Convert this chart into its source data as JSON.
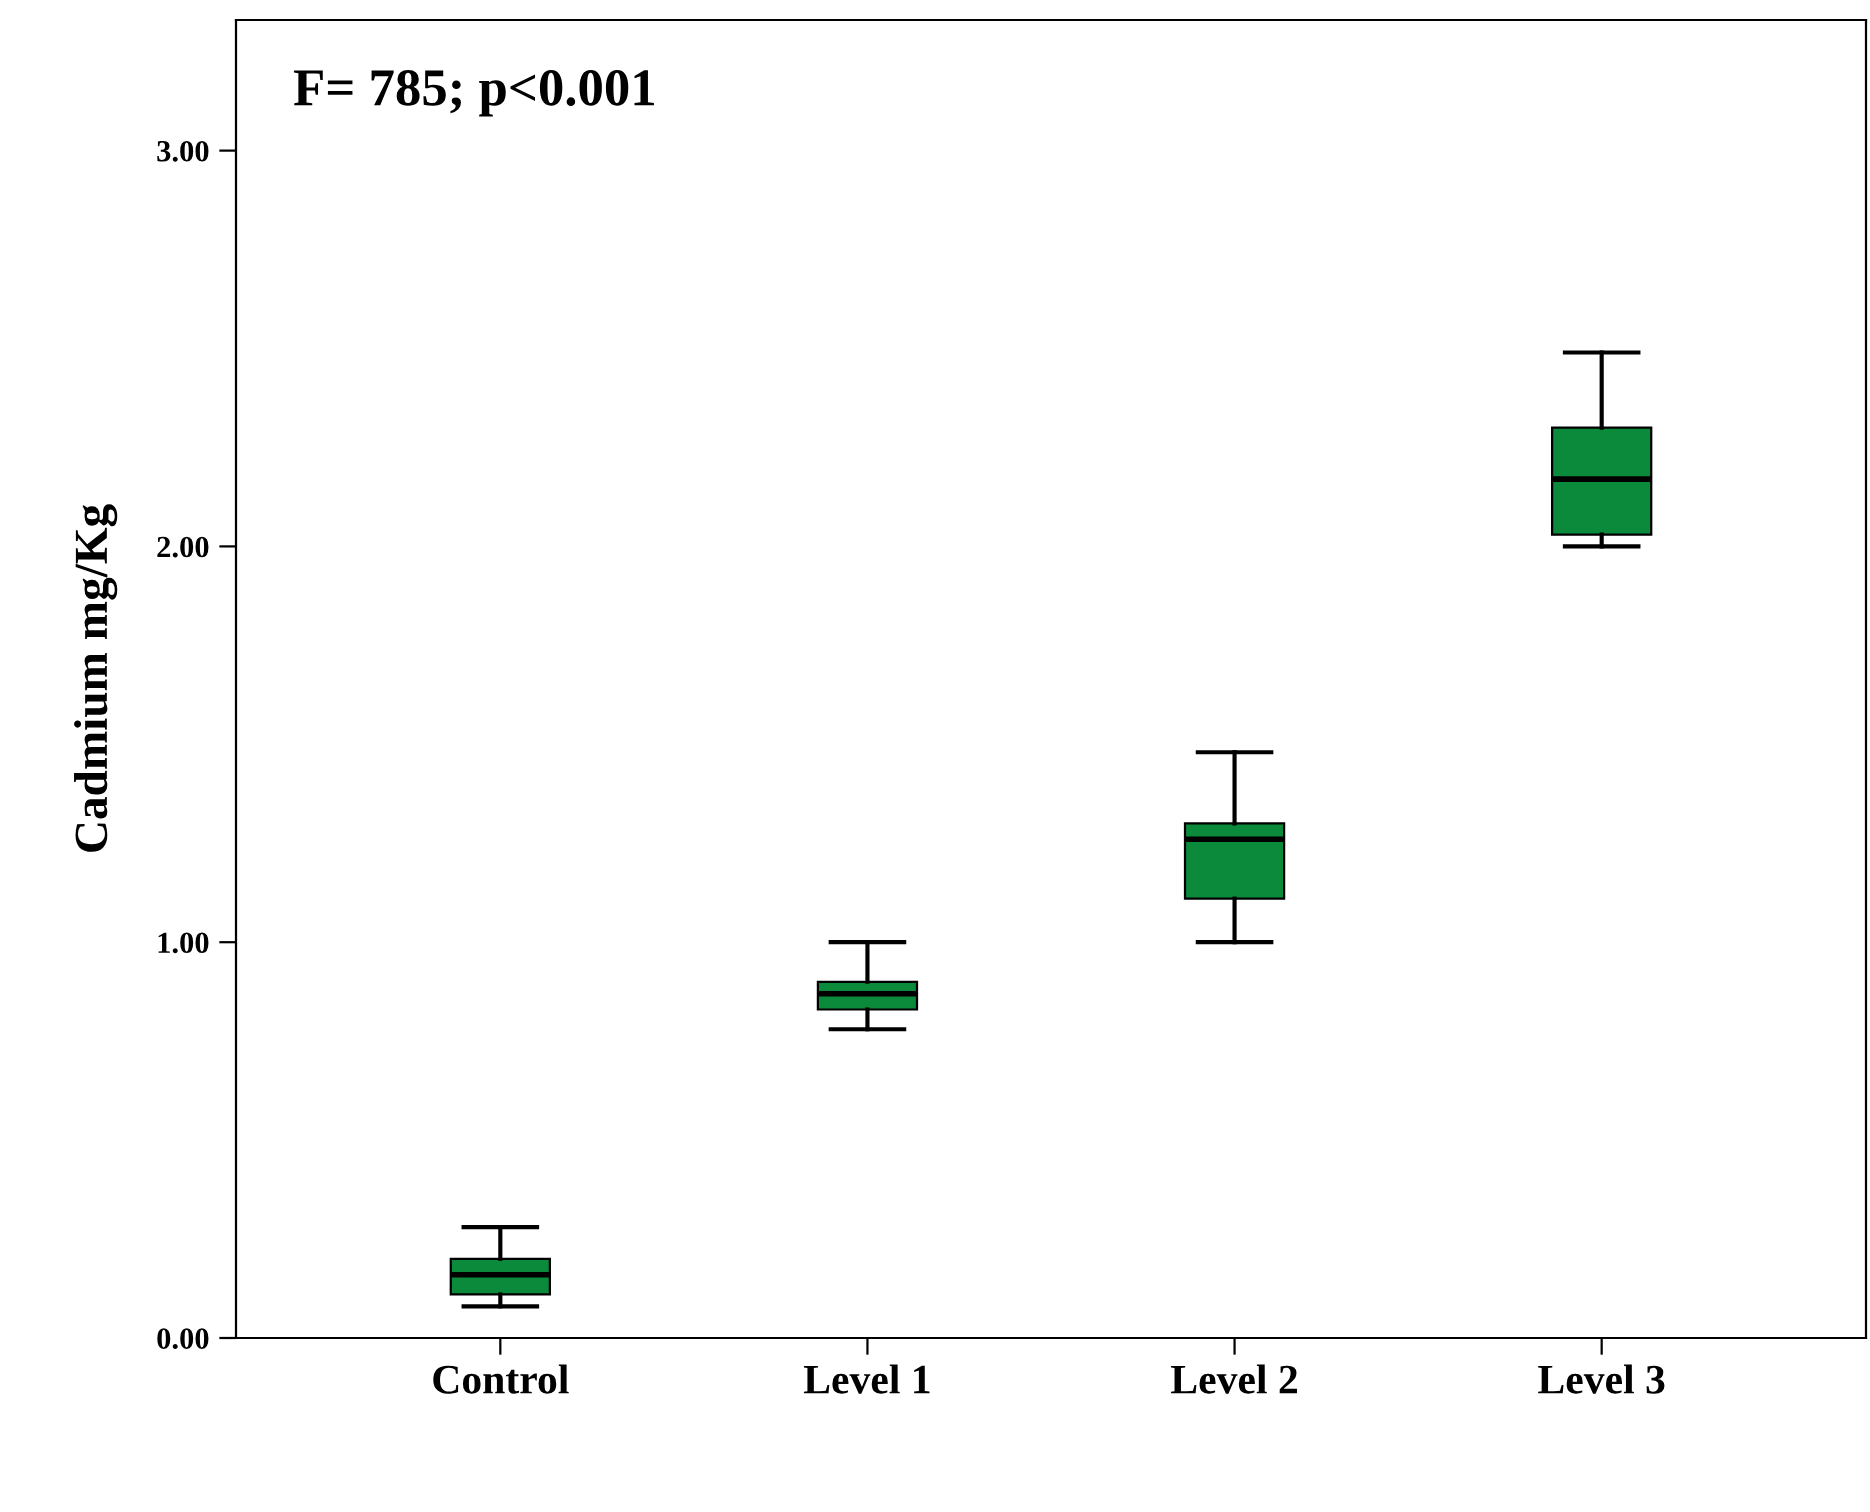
{
  "chart_data": {
    "type": "box",
    "ylabel": "Cadmium mg/Kg",
    "categories": [
      "Control",
      "Level 1",
      "Level 2",
      "Level 3"
    ],
    "series": [
      {
        "color": "#0a8a3a",
        "boxes": [
          {
            "low": 0.08,
            "q1": 0.11,
            "median": 0.16,
            "q3": 0.2,
            "high": 0.28
          },
          {
            "low": 0.78,
            "q1": 0.83,
            "median": 0.87,
            "q3": 0.9,
            "high": 1.0
          },
          {
            "low": 1.0,
            "q1": 1.11,
            "median": 1.26,
            "q3": 1.3,
            "high": 1.48
          },
          {
            "low": 2.0,
            "q1": 2.03,
            "median": 2.17,
            "q3": 2.3,
            "high": 2.49
          }
        ]
      }
    ],
    "ylim": [
      0,
      3.33
    ],
    "yticks": [
      {
        "value": 0,
        "label": "0.00"
      },
      {
        "value": 1,
        "label": "1.00"
      },
      {
        "value": 2,
        "label": "2.00"
      },
      {
        "value": 3,
        "label": "3.00"
      }
    ],
    "annotations": [
      "F= 785; p<0.001"
    ],
    "grid": false,
    "legend": false
  }
}
